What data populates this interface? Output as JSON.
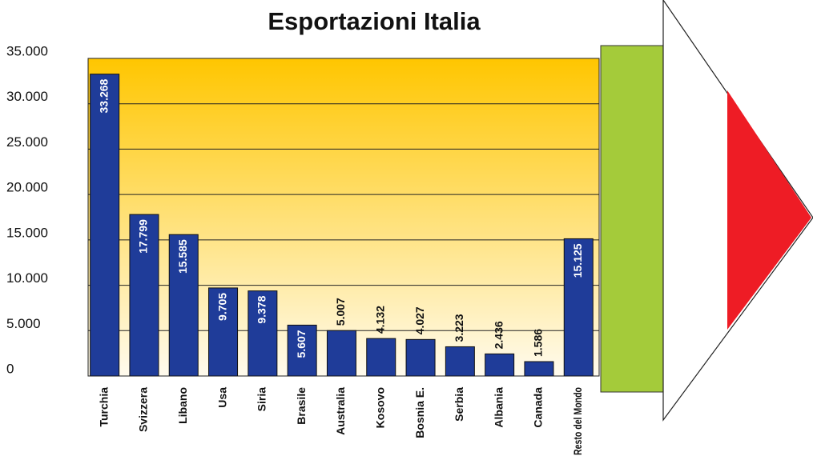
{
  "chart_data": {
    "type": "bar",
    "title": "Esportazioni Italia",
    "categories": [
      "Turchia",
      "Svizzera",
      "Libano",
      "Usa",
      "Siria",
      "Brasile",
      "Australia",
      "Kosovo",
      "Bosnia E.",
      "Serbia",
      "Albania",
      "Canada",
      "Resto del Mondo"
    ],
    "values": [
      33268,
      17799,
      15585,
      9705,
      9378,
      5607,
      5007,
      4132,
      4027,
      3223,
      2436,
      1586,
      15125
    ],
    "value_labels": [
      "33.268",
      "17.799",
      "15.585",
      "9.705",
      "9.378",
      "5.607",
      "5.007",
      "4.132",
      "4.027",
      "3.223",
      "2.436",
      "1.586",
      "15.125"
    ],
    "color": "#1f3c99",
    "ylim": [
      0,
      35000
    ],
    "yticks": [
      0,
      {
        "value": 5000,
        "label": "5.000"
      },
      {
        "value": 10000,
        "label": "10.000"
      },
      {
        "value": 15000,
        "label": "15.000"
      },
      {
        "value": 20000,
        "label": "20.000"
      },
      {
        "value": 25000,
        "label": "25.000"
      },
      {
        "value": 30000,
        "label": "30.000"
      },
      {
        "value": 35000,
        "label": "35.000"
      }
    ],
    "grid": true
  }
}
